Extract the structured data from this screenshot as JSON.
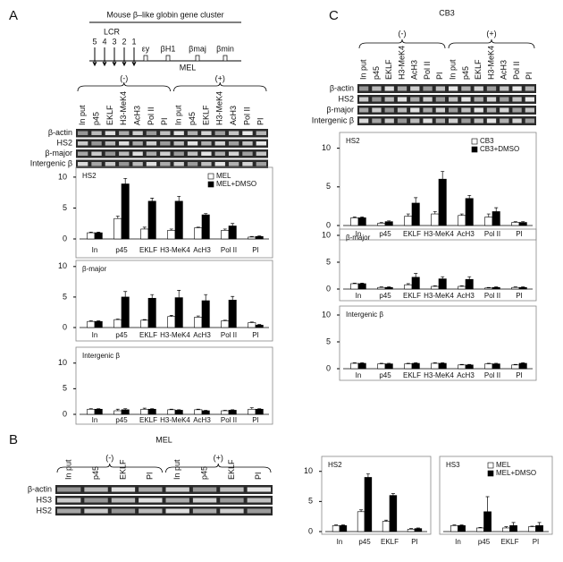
{
  "panel_labels": [
    "A",
    "B",
    "C"
  ],
  "cluster": {
    "title": "Mouse β–like globin gene cluster",
    "lcr": "LCR",
    "hs_sites": [
      "5",
      "4",
      "3",
      "2",
      "1"
    ],
    "genes": [
      "εy",
      "βH1",
      "βmaj",
      "βmin"
    ],
    "cell_line": "MEL"
  },
  "gels": [
    {
      "groups": [
        "(-)",
        "(+)"
      ],
      "lanes": [
        "In put",
        "p45",
        "EKLF",
        "H3-MeK4",
        "AcH3",
        "Pol II",
        "PI",
        "In put",
        "p45",
        "EKLF",
        "H3-MeK4",
        "AcH3",
        "Pol II",
        "PI"
      ],
      "rows": [
        "β-actin",
        "HS2",
        "β-major",
        "Intergenic β"
      ]
    },
    {
      "title": "MEL",
      "groups": [
        "(-)",
        "(+)"
      ],
      "lanes": [
        "In put",
        "p45",
        "EKLF",
        "PI",
        "In put",
        "p45",
        "EKLF",
        "PI"
      ],
      "rows": [
        "β-actin",
        "HS3",
        "HS2"
      ]
    },
    {
      "title": "CB3",
      "groups": [
        "(-)",
        "(+)"
      ],
      "lanes": [
        "In put",
        "p45",
        "EKLF",
        "H3-MeK4",
        "AcH3",
        "Pol II",
        "PI",
        "In put",
        "p45",
        "EKLF",
        "H3-MeK4",
        "AcH3",
        "Pol II",
        "PI"
      ],
      "rows": [
        "β-actin",
        "HS2",
        "β-major",
        "Intergenic β"
      ]
    }
  ],
  "chart_data": [
    {
      "type": "bar",
      "title": "HS2",
      "categories": [
        "In",
        "p45",
        "EKLF",
        "H3-MeK4",
        "AcH3",
        "Pol II",
        "PI"
      ],
      "ylim": [
        0,
        11
      ],
      "yticks": [
        0,
        5,
        10
      ],
      "legend": "top-right",
      "series": [
        {
          "name": "MEL",
          "color": "#ffffff",
          "values": [
            1,
            3.3,
            1.6,
            1.4,
            1.8,
            1.4,
            0.3
          ],
          "errors": [
            0.1,
            0.4,
            0.3,
            0.2,
            0.1,
            0.2,
            0.1
          ]
        },
        {
          "name": "MEL+DMSO",
          "color": "#000000",
          "values": [
            1,
            8.9,
            6.1,
            6.1,
            3.9,
            2.1,
            0.4
          ],
          "errors": [
            0.1,
            0.9,
            0.5,
            0.8,
            0.2,
            0.4,
            0.1
          ]
        }
      ]
    },
    {
      "type": "bar",
      "title": "β-major",
      "categories": [
        "In",
        "p45",
        "EKLF",
        "H3-MeK4",
        "AcH3",
        "Pol II",
        "PI"
      ],
      "ylim": [
        0,
        11
      ],
      "yticks": [
        0,
        5,
        10
      ],
      "series": [
        {
          "color": "#ffffff",
          "values": [
            1,
            1.3,
            1.2,
            1.8,
            1.7,
            1.1,
            0.8
          ],
          "errors": [
            0.1,
            0.1,
            0.1,
            0.2,
            0.2,
            0.1,
            0.1
          ]
        },
        {
          "color": "#000000",
          "values": [
            1,
            5,
            4.8,
            4.9,
            4.4,
            4.5,
            0.4
          ],
          "errors": [
            0.1,
            0.9,
            0.6,
            1.2,
            1,
            0.6,
            0.1
          ]
        }
      ]
    },
    {
      "type": "bar",
      "title": "Intergenic β",
      "categories": [
        "In",
        "p45",
        "EKLF",
        "H3-MeK4",
        "AcH3",
        "Pol II",
        "PI"
      ],
      "ylim": [
        0,
        11
      ],
      "yticks": [
        0,
        5,
        10
      ],
      "series": [
        {
          "color": "#ffffff",
          "values": [
            1,
            0.7,
            1,
            0.9,
            0.9,
            0.7,
            1
          ],
          "errors": [
            0.1,
            0.3,
            0.2,
            0.1,
            0.1,
            0.1,
            0.3
          ]
        },
        {
          "color": "#000000",
          "values": [
            1,
            0.9,
            1,
            0.8,
            0.7,
            0.8,
            1
          ],
          "errors": [
            0.1,
            0.2,
            0.1,
            0.1,
            0.1,
            0.1,
            0.1
          ]
        }
      ]
    },
    {
      "type": "bar",
      "title": "HS2",
      "categories": [
        "In",
        "p45",
        "EKLF",
        "H3-MeK4",
        "AcH3",
        "Pol II",
        "PI"
      ],
      "ylim": [
        0,
        11
      ],
      "yticks": [
        0,
        5,
        10
      ],
      "legend": "top-right",
      "series": [
        {
          "name": "CB3",
          "color": "#ffffff",
          "values": [
            1,
            0.3,
            1.2,
            1.5,
            1.3,
            1.1,
            0.4
          ],
          "errors": [
            0.1,
            0.1,
            0.3,
            0.3,
            0.2,
            0.4,
            0.1
          ]
        },
        {
          "name": "CB3+DMSO",
          "color": "#000000",
          "values": [
            1,
            0.5,
            2.9,
            6,
            3.5,
            1.8,
            0.4
          ],
          "errors": [
            0.1,
            0.1,
            0.7,
            1,
            0.4,
            0.5,
            0.1
          ]
        }
      ]
    },
    {
      "type": "bar",
      "title": "β-major",
      "categories": [
        "In",
        "p45",
        "EKLF",
        "H3-MeK4",
        "AcH3",
        "Pol II",
        "PI"
      ],
      "ylim": [
        0,
        11
      ],
      "yticks": [
        0,
        5,
        10
      ],
      "series": [
        {
          "color": "#ffffff",
          "values": [
            1,
            0.3,
            0.8,
            0.5,
            0.5,
            0.2,
            0.3
          ],
          "errors": [
            0.1,
            0.1,
            0.2,
            0.1,
            0.1,
            0.1,
            0.1
          ]
        },
        {
          "color": "#000000",
          "values": [
            1,
            0.3,
            2.2,
            1.9,
            1.8,
            0.3,
            0.3
          ],
          "errors": [
            0.1,
            0.1,
            0.7,
            0.4,
            0.5,
            0.1,
            0.1
          ]
        }
      ]
    },
    {
      "type": "bar",
      "title": "Intergenic β",
      "categories": [
        "In",
        "p45",
        "EKLF",
        "H3-MeK4",
        "AcH3",
        "Pol II",
        "PI"
      ],
      "ylim": [
        0,
        11
      ],
      "yticks": [
        0,
        5,
        10
      ],
      "series": [
        {
          "color": "#ffffff",
          "values": [
            1,
            0.9,
            0.9,
            1,
            0.7,
            0.9,
            0.7
          ],
          "errors": [
            0.1,
            0.1,
            0.1,
            0.1,
            0.1,
            0.1,
            0.1
          ]
        },
        {
          "color": "#000000",
          "values": [
            1,
            0.9,
            1,
            1,
            0.7,
            0.9,
            1
          ],
          "errors": [
            0.1,
            0.1,
            0.1,
            0.1,
            0.1,
            0.1,
            0.1
          ]
        }
      ]
    },
    {
      "type": "bar",
      "title": "HS2",
      "categories": [
        "In",
        "p45",
        "EKLF",
        "PI"
      ],
      "ylim": [
        0,
        11
      ],
      "yticks": [
        0,
        5,
        10
      ],
      "series": [
        {
          "color": "#ffffff",
          "values": [
            1,
            3.3,
            1.7,
            0.4
          ],
          "errors": [
            0.1,
            0.3,
            0.2,
            0.1
          ]
        },
        {
          "color": "#000000",
          "values": [
            1,
            9,
            6,
            0.5
          ],
          "errors": [
            0.1,
            0.6,
            0.3,
            0.1
          ]
        }
      ]
    },
    {
      "type": "bar",
      "title": "HS3",
      "categories": [
        "In",
        "p45",
        "EKLF",
        "PI"
      ],
      "ylim": [
        0,
        11
      ],
      "legend": "top-right",
      "series": [
        {
          "name": "MEL",
          "color": "#ffffff",
          "values": [
            1,
            0.6,
            0.6,
            0.8
          ],
          "errors": [
            0.1,
            0.1,
            0.2,
            0.1
          ]
        },
        {
          "name": "MEL+DMSO",
          "color": "#000000",
          "values": [
            1,
            3.3,
            1,
            1
          ],
          "errors": [
            0.1,
            2.5,
            0.5,
            0.5
          ]
        }
      ]
    }
  ]
}
